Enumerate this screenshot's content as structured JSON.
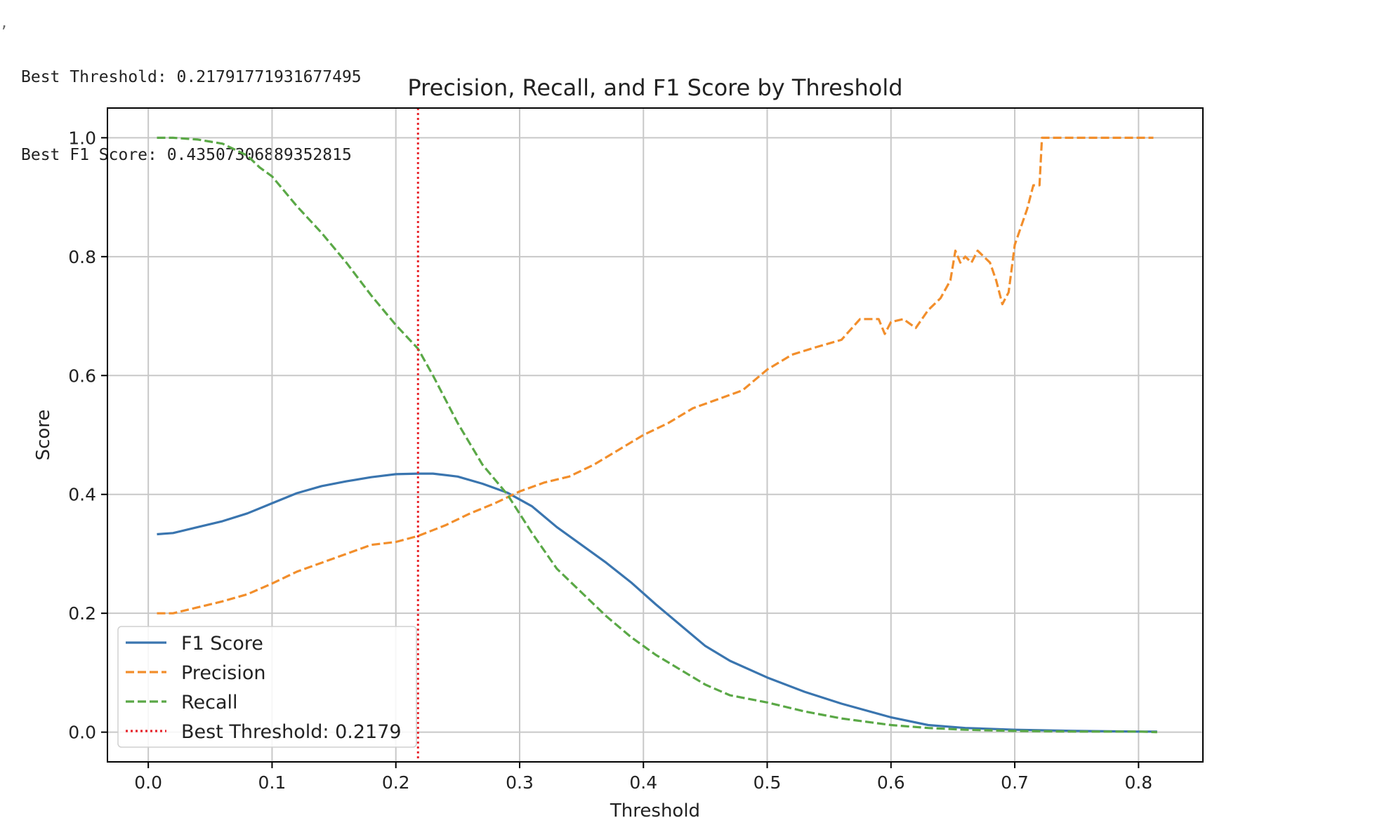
{
  "output": {
    "line1": "Best Threshold: 0.21791771931677495",
    "line2": "Best F1 Score: 0.43507306889352815"
  },
  "colors": {
    "f1": "#3a75af",
    "precision": "#f28e2b",
    "recall": "#5aa846",
    "best": "#e8262c",
    "grid": "#c8c8c8",
    "axis": "#000000"
  },
  "chart_data": {
    "type": "line",
    "title": "Precision, Recall, and F1 Score by Threshold",
    "xlabel": "Threshold",
    "ylabel": "Score",
    "xlim": [
      -0.033,
      0.852
    ],
    "ylim": [
      -0.05,
      1.05
    ],
    "xticks": [
      0.0,
      0.1,
      0.2,
      0.3,
      0.4,
      0.5,
      0.6,
      0.7,
      0.8
    ],
    "xtick_labels": [
      "0.0",
      "0.1",
      "0.2",
      "0.3",
      "0.4",
      "0.5",
      "0.6",
      "0.7",
      "0.8"
    ],
    "yticks": [
      0.0,
      0.2,
      0.4,
      0.6,
      0.8,
      1.0
    ],
    "ytick_labels": [
      "0.0",
      "0.2",
      "0.4",
      "0.6",
      "0.8",
      "1.0"
    ],
    "grid": true,
    "legend_position": "lower-left",
    "best_threshold": 0.2179,
    "legend": [
      "F1 Score",
      "Precision",
      "Recall",
      "Best Threshold: 0.2179"
    ],
    "series": [
      {
        "name": "F1 Score",
        "style": "solid",
        "x": [
          0.007,
          0.02,
          0.04,
          0.06,
          0.08,
          0.1,
          0.12,
          0.14,
          0.16,
          0.18,
          0.2,
          0.2179,
          0.23,
          0.25,
          0.27,
          0.29,
          0.31,
          0.33,
          0.35,
          0.37,
          0.39,
          0.41,
          0.43,
          0.45,
          0.47,
          0.5,
          0.53,
          0.56,
          0.6,
          0.63,
          0.66,
          0.7,
          0.75,
          0.8,
          0.815
        ],
        "y": [
          0.333,
          0.335,
          0.345,
          0.355,
          0.368,
          0.385,
          0.402,
          0.414,
          0.422,
          0.429,
          0.434,
          0.435,
          0.435,
          0.43,
          0.418,
          0.403,
          0.38,
          0.345,
          0.315,
          0.285,
          0.252,
          0.215,
          0.18,
          0.145,
          0.12,
          0.092,
          0.068,
          0.048,
          0.025,
          0.012,
          0.007,
          0.004,
          0.002,
          0.001,
          0.001
        ]
      },
      {
        "name": "Precision",
        "style": "dashed",
        "x": [
          0.007,
          0.02,
          0.04,
          0.06,
          0.08,
          0.1,
          0.12,
          0.14,
          0.16,
          0.18,
          0.2,
          0.2179,
          0.24,
          0.26,
          0.28,
          0.3,
          0.32,
          0.34,
          0.36,
          0.38,
          0.4,
          0.42,
          0.44,
          0.46,
          0.48,
          0.5,
          0.52,
          0.54,
          0.56,
          0.575,
          0.59,
          0.595,
          0.6,
          0.61,
          0.62,
          0.63,
          0.64,
          0.648,
          0.652,
          0.656,
          0.66,
          0.665,
          0.67,
          0.675,
          0.68,
          0.685,
          0.69,
          0.695,
          0.7,
          0.705,
          0.71,
          0.715,
          0.718,
          0.72,
          0.722,
          0.74,
          0.76,
          0.78,
          0.8,
          0.812
        ],
        "y": [
          0.2,
          0.2,
          0.21,
          0.22,
          0.232,
          0.25,
          0.27,
          0.285,
          0.3,
          0.315,
          0.32,
          0.33,
          0.348,
          0.368,
          0.385,
          0.405,
          0.42,
          0.43,
          0.45,
          0.475,
          0.5,
          0.52,
          0.545,
          0.56,
          0.575,
          0.61,
          0.635,
          0.648,
          0.66,
          0.695,
          0.695,
          0.67,
          0.69,
          0.695,
          0.68,
          0.71,
          0.73,
          0.76,
          0.81,
          0.79,
          0.8,
          0.79,
          0.81,
          0.8,
          0.79,
          0.76,
          0.72,
          0.74,
          0.82,
          0.85,
          0.88,
          0.92,
          0.92,
          0.92,
          1.0,
          1.0,
          1.0,
          1.0,
          1.0,
          1.0
        ]
      },
      {
        "name": "Recall",
        "style": "dashed",
        "x": [
          0.007,
          0.02,
          0.04,
          0.06,
          0.07,
          0.08,
          0.09,
          0.1,
          0.11,
          0.12,
          0.14,
          0.16,
          0.18,
          0.2,
          0.2179,
          0.23,
          0.25,
          0.27,
          0.29,
          0.31,
          0.33,
          0.35,
          0.37,
          0.39,
          0.41,
          0.43,
          0.45,
          0.47,
          0.5,
          0.53,
          0.56,
          0.6,
          0.63,
          0.66,
          0.7,
          0.75,
          0.8,
          0.815
        ],
        "y": [
          1.0,
          1.0,
          0.997,
          0.99,
          0.98,
          0.97,
          0.95,
          0.935,
          0.91,
          0.885,
          0.84,
          0.79,
          0.735,
          0.685,
          0.645,
          0.6,
          0.52,
          0.45,
          0.4,
          0.335,
          0.275,
          0.235,
          0.195,
          0.16,
          0.13,
          0.105,
          0.08,
          0.062,
          0.05,
          0.035,
          0.023,
          0.012,
          0.007,
          0.004,
          0.002,
          0.001,
          0.001,
          0.0
        ]
      }
    ]
  }
}
